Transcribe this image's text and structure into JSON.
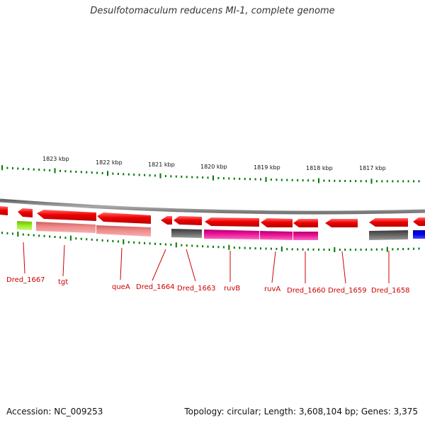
{
  "title": "Desulfotomaculum reducens MI-1, complete genome",
  "kbp_labels": [
    "1823 kbp",
    "1822 kbp",
    "1821 kbp",
    "1820 kbp",
    "1819 kbp",
    "1818 kbp",
    "1817 kbp"
  ],
  "gene_labels": [
    "Dred_1667",
    "tgt",
    "queA",
    "Dred_1664",
    "Dred_1663",
    "ruvB",
    "ruvA",
    "Dred_1660",
    "Dred_1659",
    "Dred_1658"
  ],
  "colors": {
    "arrow_red": "#ee0000",
    "tick_green": "#007700",
    "backbone": "#888888",
    "label_red": "#cc0000",
    "yellow_green": "#99ee22",
    "salmon": "#f08080",
    "dark_gray": "#555555",
    "magenta": "#ee1199",
    "blue": "#0000ee"
  },
  "footer": {
    "accession": "Accession: NC_009253",
    "summary": "Topology: circular; Length: 3,608,104 bp; Genes: 3,375"
  }
}
